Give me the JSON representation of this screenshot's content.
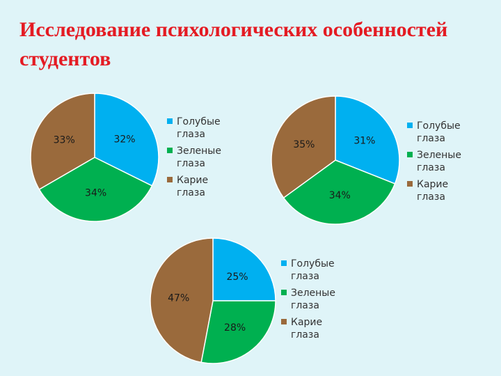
{
  "title": "Исследование психологических особенностей студентов",
  "colors": {
    "title": "#e41b23",
    "background": "#dff4f8",
    "blue": "#00b0f0",
    "green": "#00b050",
    "brown": "#9a6a3c"
  },
  "chart_data": [
    {
      "type": "pie",
      "categories": [
        "Голубые глаза",
        "Зеленые глаза",
        "Карие глаза"
      ],
      "values": [
        32,
        34,
        33
      ],
      "labels": [
        "32%",
        "34%",
        "33%"
      ],
      "legend_labels": [
        [
          "Голубые",
          "глаза"
        ],
        [
          "Зеленые",
          "глаза"
        ],
        [
          "Карие",
          "глаза"
        ]
      ],
      "legend": "right"
    },
    {
      "type": "pie",
      "categories": [
        "Голубые глаза",
        "Зеленые глаза",
        "Карие глаза"
      ],
      "values": [
        31,
        34,
        35
      ],
      "labels": [
        "31%",
        "34%",
        "35%"
      ],
      "legend_labels": [
        [
          "Голубые",
          "глаза"
        ],
        [
          "Зеленые",
          "глаза"
        ],
        [
          "Карие",
          "глаза"
        ]
      ],
      "legend": "right"
    },
    {
      "type": "pie",
      "categories": [
        "Голубые глаза",
        "Зеленые глаза",
        "Карие глаза"
      ],
      "values": [
        25,
        28,
        47
      ],
      "labels": [
        "25%",
        "28%",
        "47%"
      ],
      "legend_labels": [
        [
          "Голубые",
          "глаза"
        ],
        [
          "Зеленые",
          "глаза"
        ],
        [
          "Карие",
          "глаза"
        ]
      ],
      "legend": "right"
    }
  ]
}
